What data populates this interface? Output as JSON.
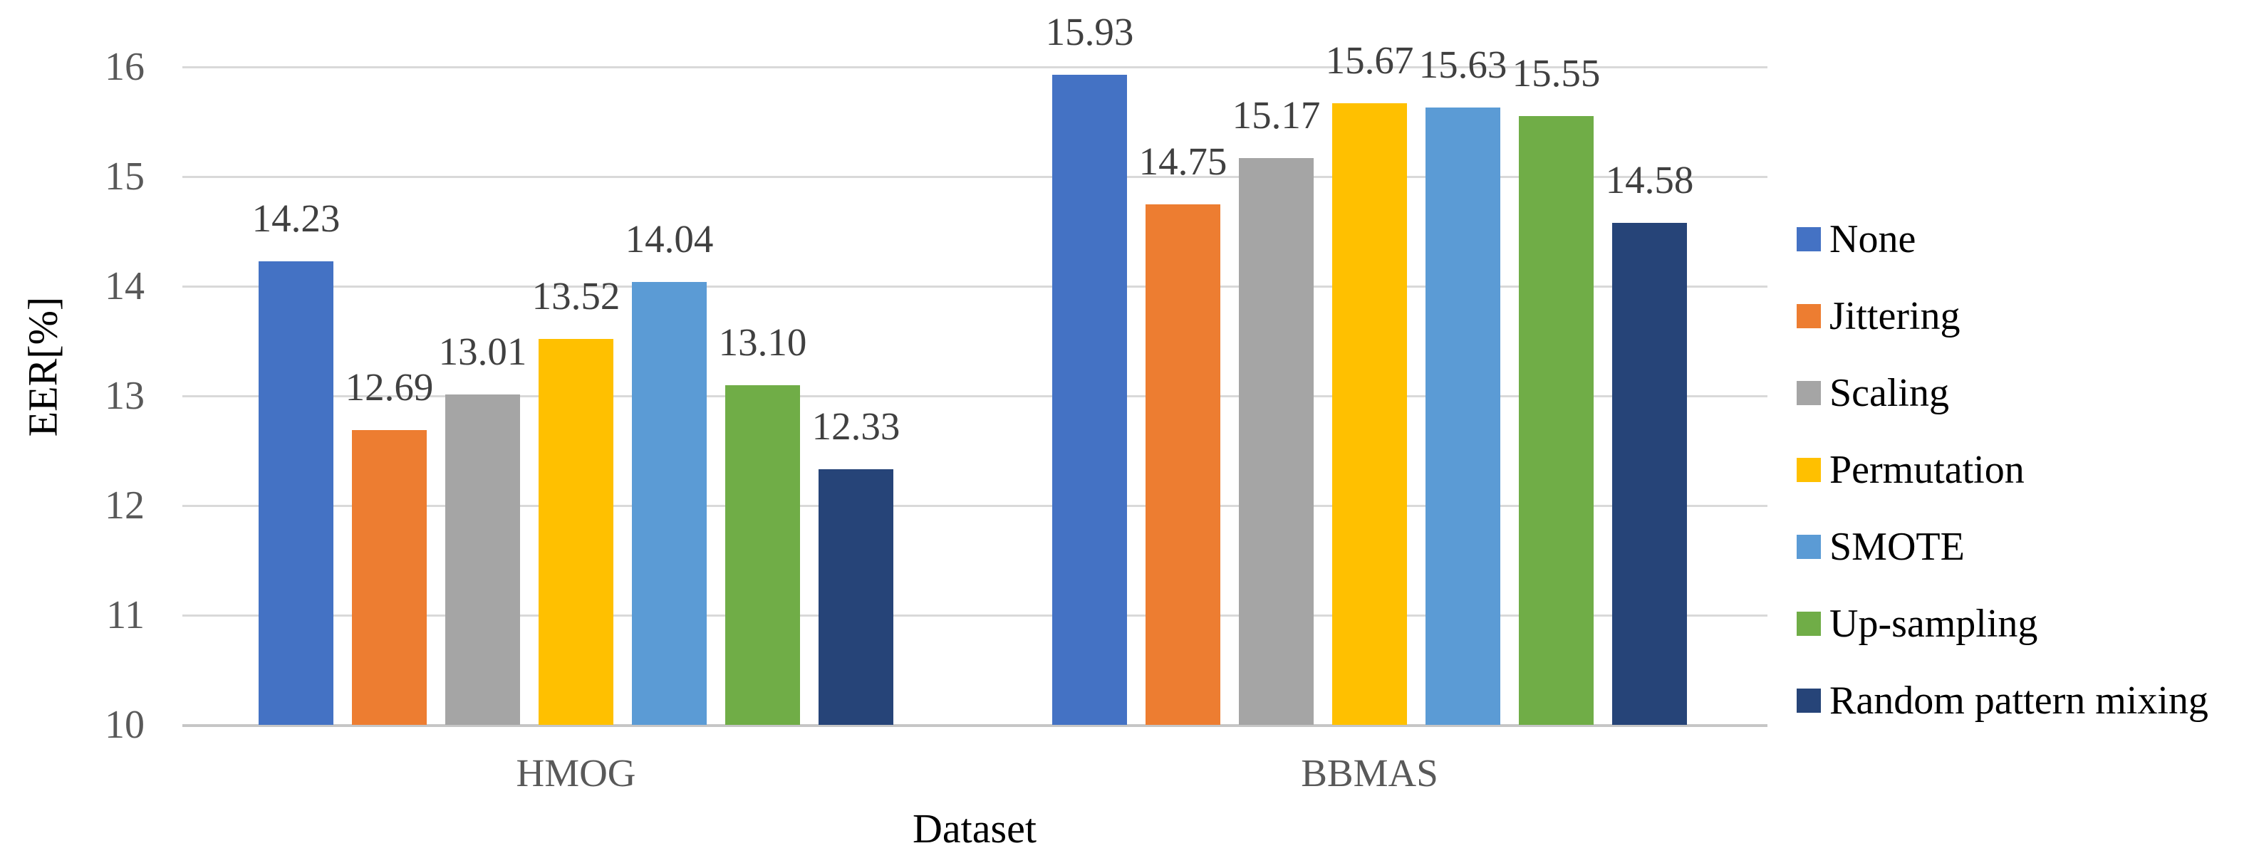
{
  "chart_data": {
    "type": "bar",
    "title": "",
    "xlabel": "Dataset",
    "ylabel": "EER[%]",
    "categories": [
      "HMOG",
      "BBMAS"
    ],
    "series": [
      {
        "name": "None",
        "color": "#4472C4",
        "values": [
          14.23,
          15.93
        ]
      },
      {
        "name": "Jittering",
        "color": "#ED7D31",
        "values": [
          12.69,
          14.75
        ]
      },
      {
        "name": "Scaling",
        "color": "#A5A5A5",
        "values": [
          13.01,
          15.17
        ]
      },
      {
        "name": "Permutation",
        "color": "#FFC000",
        "values": [
          13.52,
          15.67
        ]
      },
      {
        "name": "SMOTE",
        "color": "#5B9BD5",
        "values": [
          14.04,
          15.63
        ]
      },
      {
        "name": "Up-sampling",
        "color": "#70AD47",
        "values": [
          13.1,
          15.55
        ]
      },
      {
        "name": "Random pattern mixing",
        "color": "#264478",
        "values": [
          12.33,
          14.58
        ]
      }
    ],
    "ylim": [
      10,
      16
    ],
    "yticks": [
      10,
      11,
      12,
      13,
      14,
      15,
      16
    ],
    "grid": true,
    "legend_position": "right",
    "value_labels": "outside-end, 2 decimals",
    "colors_note": {
      "gridline": "#d9d9d9",
      "axis_line": "#c6c6c6",
      "tick_text": "#595959",
      "value_label_text": "#404040",
      "axis_title_text": "#000000",
      "legend_text": "#000000"
    }
  }
}
